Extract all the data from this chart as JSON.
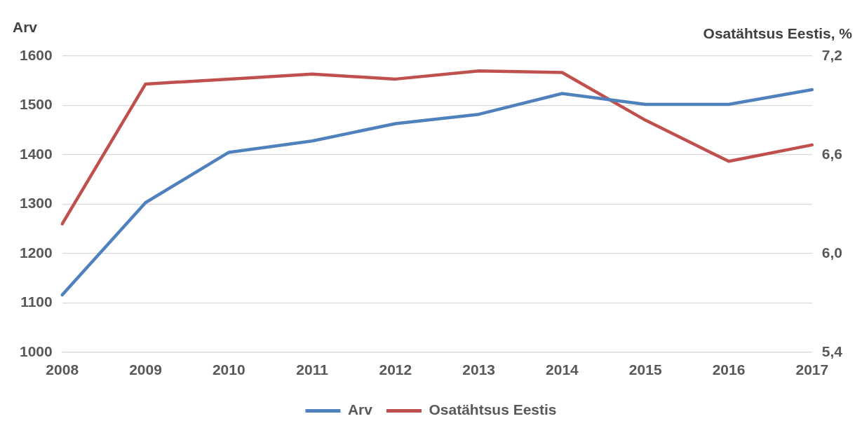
{
  "chart_data": {
    "type": "line",
    "ylabel": "Arv",
    "y2label": "Osatähtsus Eestis, %",
    "categories": [
      "2008",
      "2009",
      "2010",
      "2011",
      "2012",
      "2013",
      "2014",
      "2015",
      "2016",
      "2017"
    ],
    "series": [
      {
        "name": "Arv",
        "color": "#4f81bd",
        "values": [
          1116,
          1303,
          1405,
          1428,
          1463,
          1482,
          1524,
          1502,
          1502,
          1532
        ]
      },
      {
        "name": "Osatähtsus Eestis",
        "color": "#c0504d",
        "axis": "y2",
        "values": [
          6.18,
          7.03,
          7.06,
          7.09,
          7.06,
          7.11,
          7.1,
          6.81,
          6.56,
          6.66
        ]
      }
    ],
    "ylim": [
      1000,
      1600
    ],
    "yticks": [
      1000,
      1100,
      1200,
      1300,
      1400,
      1500,
      1600
    ],
    "y2lim": [
      5.4,
      7.2
    ],
    "y2ticks": [
      {
        "value": 5.4,
        "label": "5,4"
      },
      {
        "value": 6.0,
        "label": "6,0"
      },
      {
        "value": 6.6,
        "label": "6,6"
      },
      {
        "value": 7.2,
        "label": "7,2"
      }
    ],
    "grid": "y",
    "legend": "bottom",
    "marker": "none",
    "line_style": "solid"
  }
}
